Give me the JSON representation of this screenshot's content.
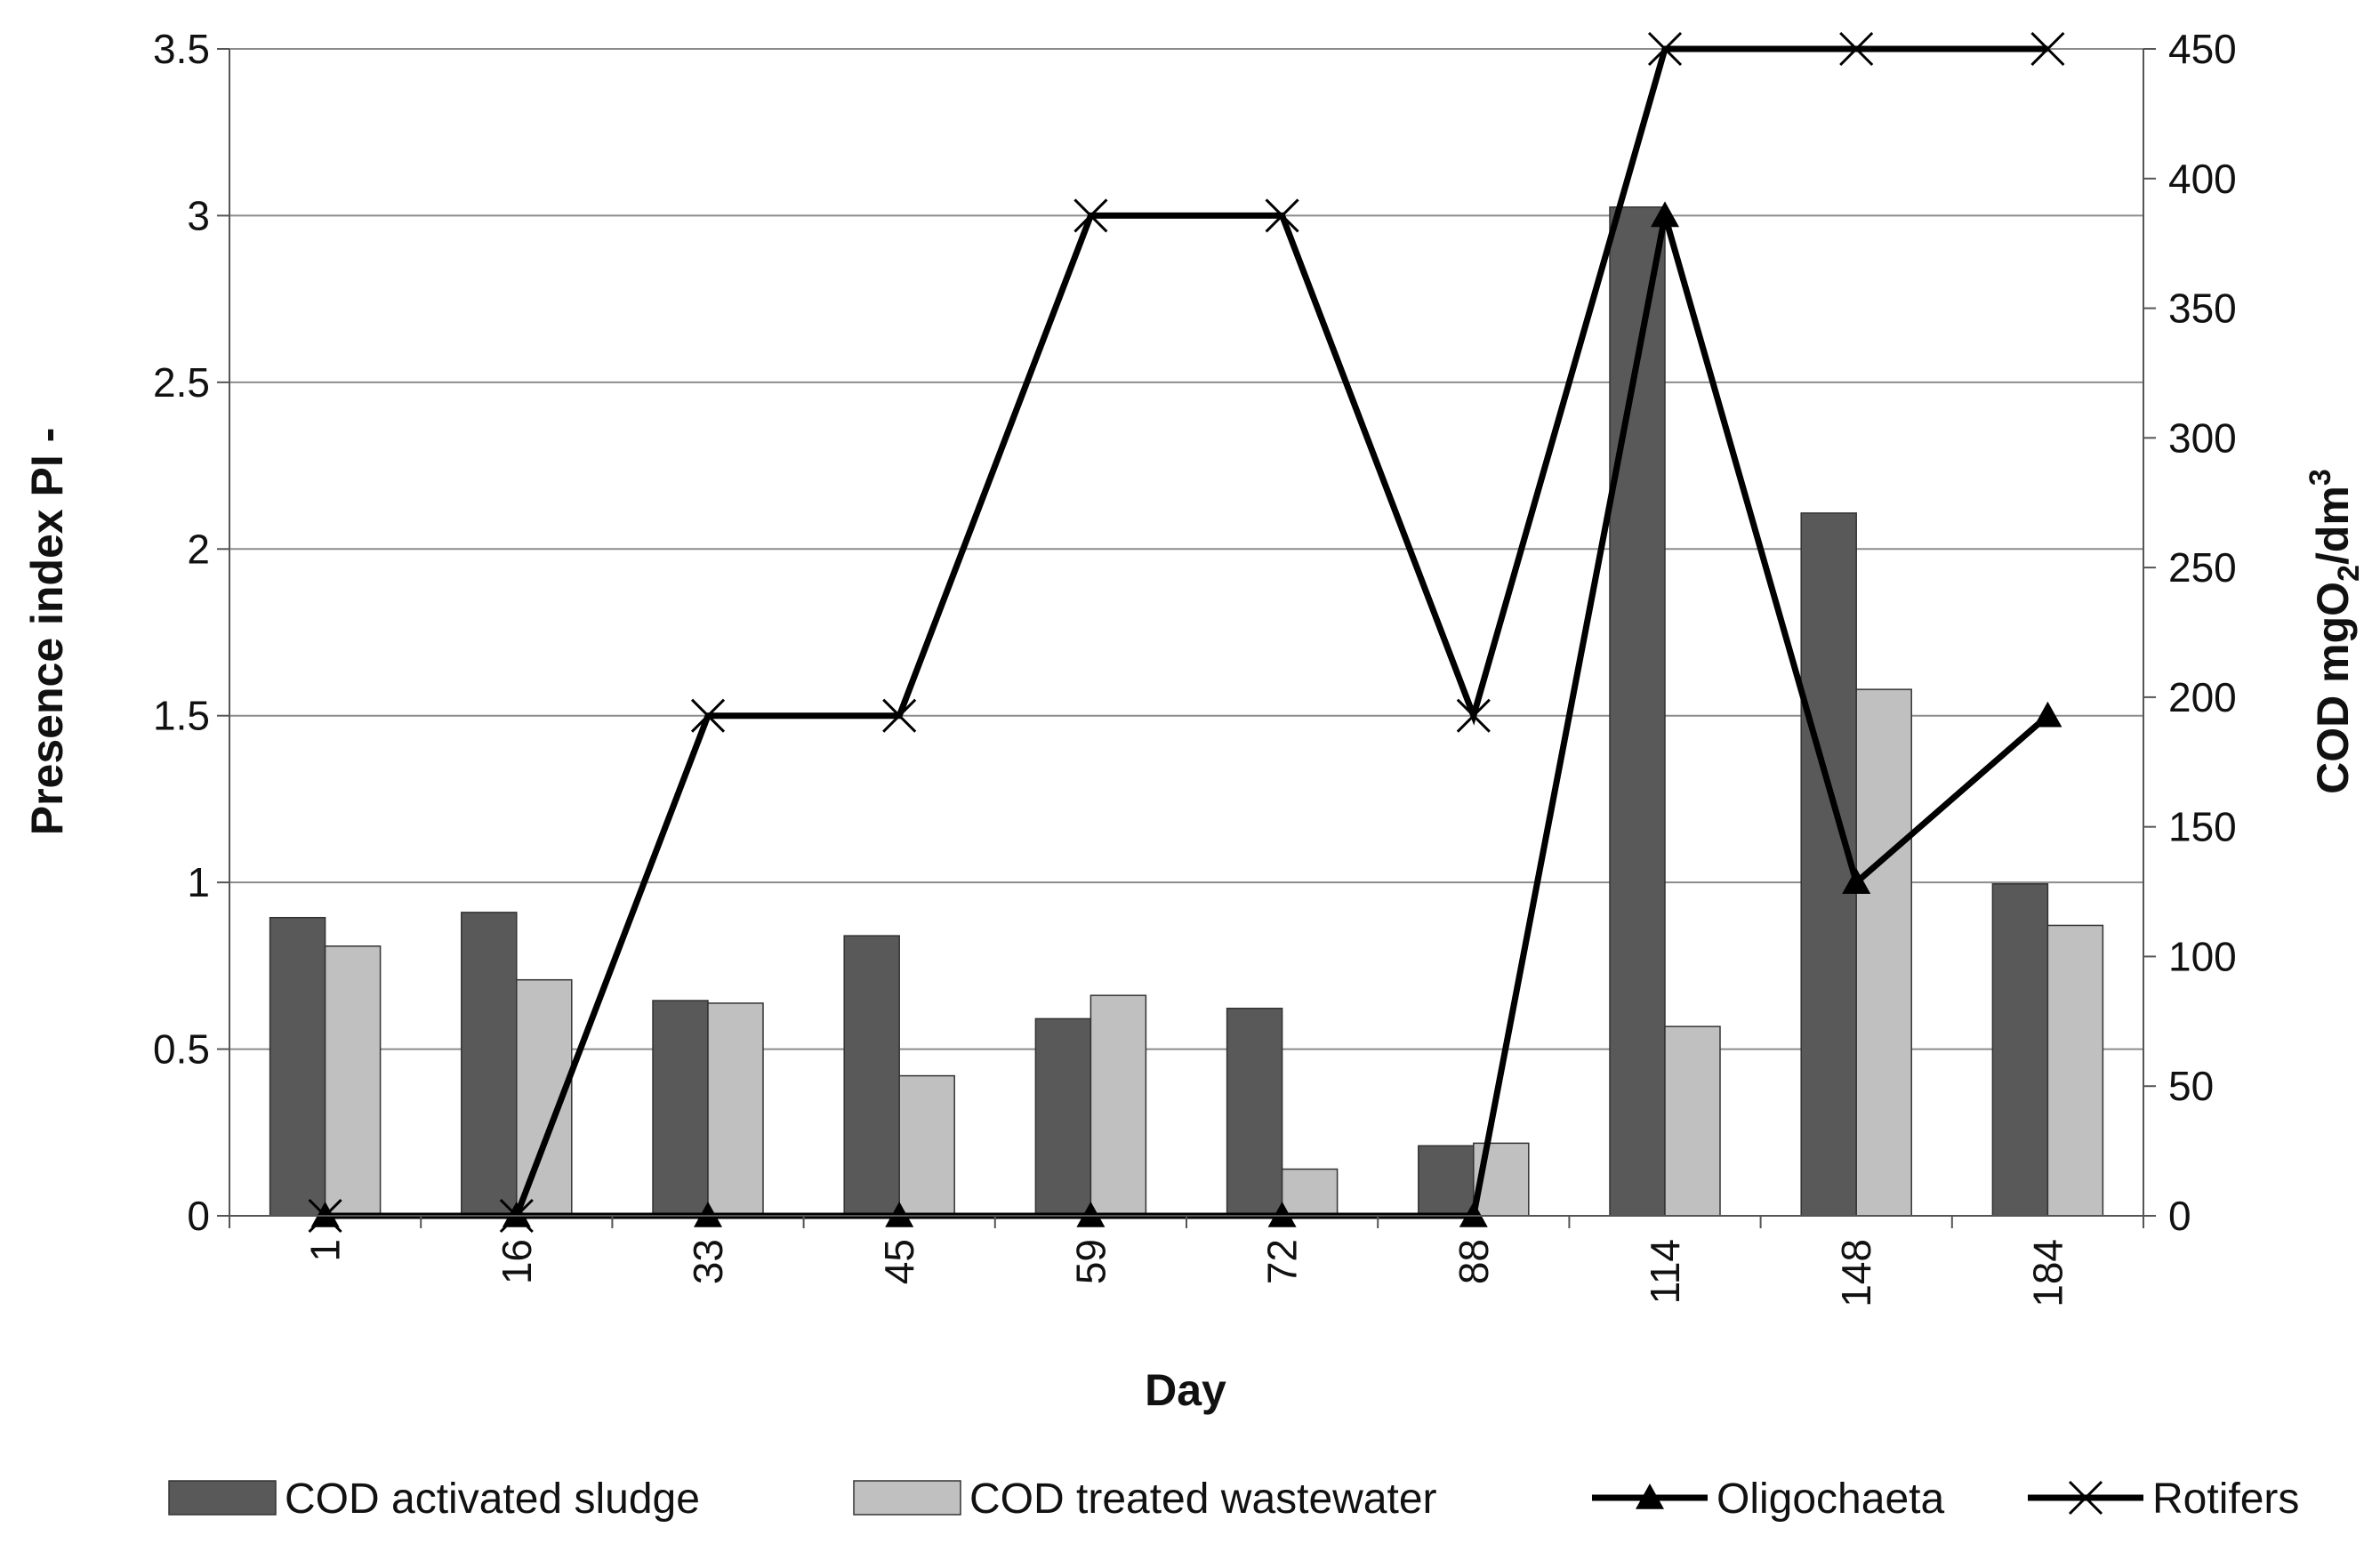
{
  "chart_data": {
    "type": "bar",
    "categories": [
      "1",
      "16",
      "33",
      "45",
      "59",
      "72",
      "88",
      "114",
      "148",
      "184"
    ],
    "xlabel": "Day",
    "ylabel": "Presence index PI -",
    "y2label_main": "COD mgO",
    "y2label_sub": "2",
    "y2label_mid": "/dm",
    "y2label_sup": "3",
    "ylim": [
      0,
      3.5
    ],
    "y_ticks": [
      0,
      0.5,
      1,
      1.5,
      2,
      2.5,
      3,
      3.5
    ],
    "y_tick_labels": [
      "0",
      "0.5",
      "1",
      "1.5",
      "2",
      "2.5",
      "3",
      "3.5"
    ],
    "y2lim": [
      0,
      450
    ],
    "y2_ticks": [
      0,
      50,
      100,
      150,
      200,
      250,
      300,
      350,
      400,
      450
    ],
    "y2_tick_labels": [
      "0",
      "50",
      "100",
      "150",
      "200",
      "250",
      "300",
      "350",
      "400",
      "450"
    ],
    "grid": true,
    "legend_position": "bottom",
    "series": [
      {
        "name": "COD activated sludge",
        "kind": "bar",
        "axis": "right",
        "color": "#595959",
        "values": [
          115,
          117,
          83,
          108,
          76,
          80,
          27,
          389,
          271,
          128
        ]
      },
      {
        "name": "COD treated wastewater",
        "kind": "bar",
        "axis": "right",
        "color": "#c0c0c0",
        "values": [
          104,
          91,
          82,
          54,
          85,
          18,
          28,
          73,
          203,
          112
        ]
      },
      {
        "name": "Oligochaeta",
        "kind": "line",
        "axis": "left",
        "marker": "triangle",
        "color": "#000000",
        "values": [
          0,
          0,
          0,
          0,
          0,
          0,
          0,
          3,
          1,
          1.5
        ]
      },
      {
        "name": "Rotifers",
        "kind": "line",
        "axis": "left",
        "marker": "x",
        "color": "#000000",
        "values": [
          0,
          0,
          1.5,
          1.5,
          3,
          3,
          1.5,
          3.5,
          3.5,
          3.5
        ]
      }
    ]
  }
}
